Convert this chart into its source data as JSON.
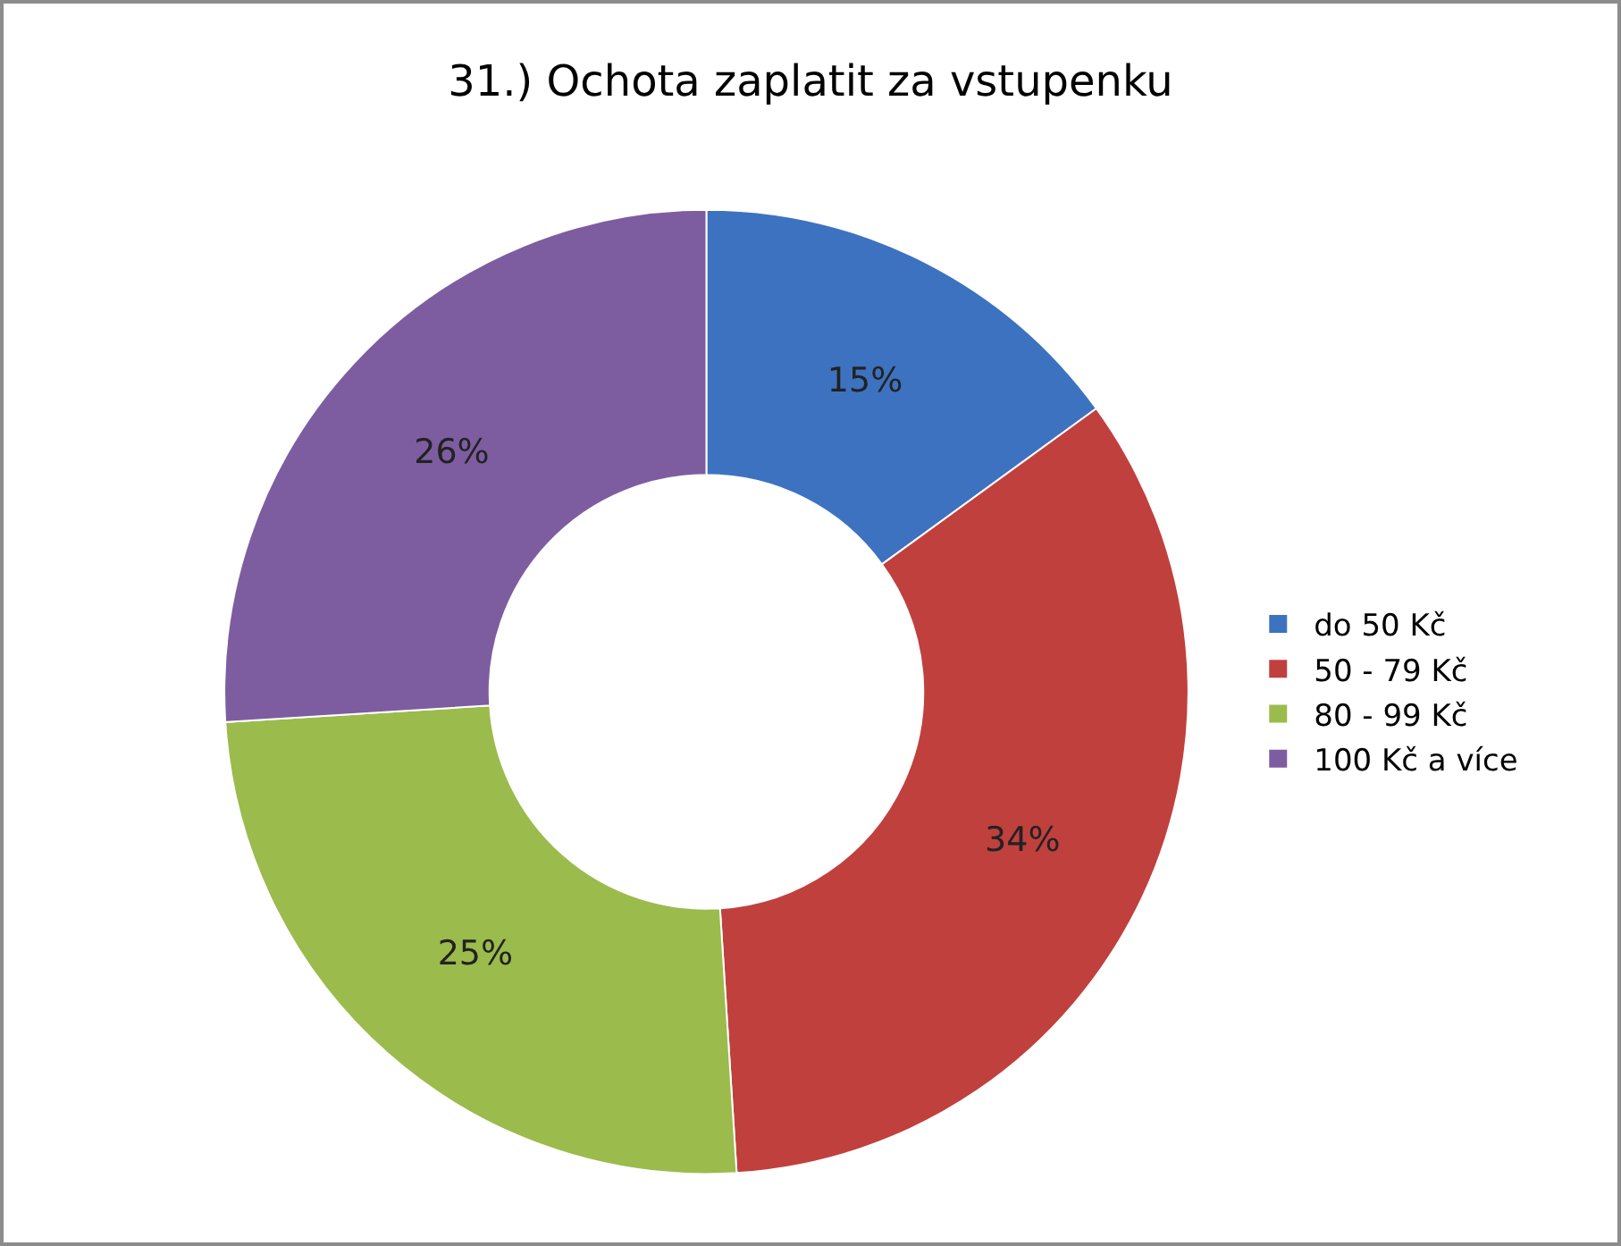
{
  "chart_data": {
    "type": "donut",
    "title": "31.) Ochota zaplatit za vstupenku",
    "categories": [
      "do 50 Kč",
      "50 - 79 Kč",
      "80 - 99 Kč",
      "100 Kč a více"
    ],
    "values": [
      15,
      34,
      25,
      26
    ],
    "value_labels": [
      "15%",
      "34%",
      "25%",
      "26%"
    ],
    "colors": [
      "#3d72c0",
      "#c0403d",
      "#9bbb4c",
      "#7d5da0"
    ],
    "legend": "right"
  }
}
